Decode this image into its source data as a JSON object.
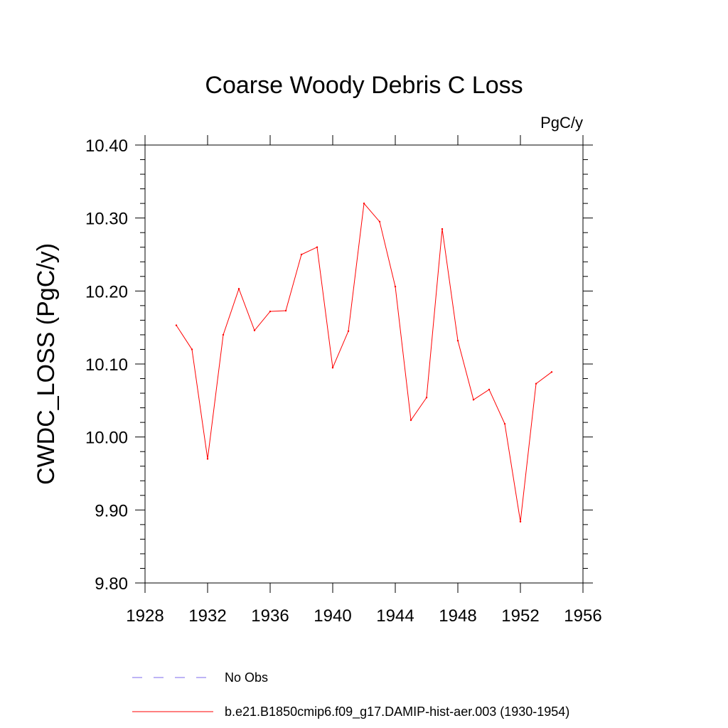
{
  "chart_data": {
    "type": "line",
    "title": "Coarse Woody Debris C Loss",
    "units": "PgC/y",
    "ylabel": "CWDC_LOSS  (PgC/y)",
    "xlabel": "",
    "xlim": [
      1928,
      1956
    ],
    "ylim": [
      9.8,
      10.4
    ],
    "x_ticks": [
      "1928",
      "1932",
      "1936",
      "1940",
      "1944",
      "1948",
      "1952",
      "1956"
    ],
    "y_ticks": [
      "9.80",
      "9.90",
      "10.00",
      "10.10",
      "10.20",
      "10.30",
      "10.40"
    ],
    "grid": false,
    "legend_placement": "bottom",
    "series": [
      {
        "name": "b.e21.B1850cmip6.f09_g17.DAMIP-hist-aer.003 (1930-1954)",
        "color": "#ff0000",
        "style": "solid",
        "x": [
          1930,
          1931,
          1932,
          1933,
          1934,
          1935,
          1936,
          1937,
          1938,
          1939,
          1940,
          1941,
          1942,
          1943,
          1944,
          1945,
          1946,
          1947,
          1948,
          1949,
          1950,
          1951,
          1952,
          1953,
          1954
        ],
        "values": [
          10.153,
          10.12,
          9.97,
          10.14,
          10.203,
          10.146,
          10.172,
          10.173,
          10.25,
          10.26,
          10.095,
          10.145,
          10.32,
          10.295,
          10.206,
          10.023,
          10.054,
          10.285,
          10.132,
          10.051,
          10.065,
          10.018,
          9.884,
          10.073,
          10.089
        ]
      }
    ],
    "legend": [
      {
        "label": "No Obs",
        "color": "#7b68ee",
        "style": "dashed"
      },
      {
        "label": "b.e21.B1850cmip6.f09_g17.DAMIP-hist-aer.003 (1930-1954)",
        "color": "#ff0000",
        "style": "solid"
      }
    ]
  }
}
